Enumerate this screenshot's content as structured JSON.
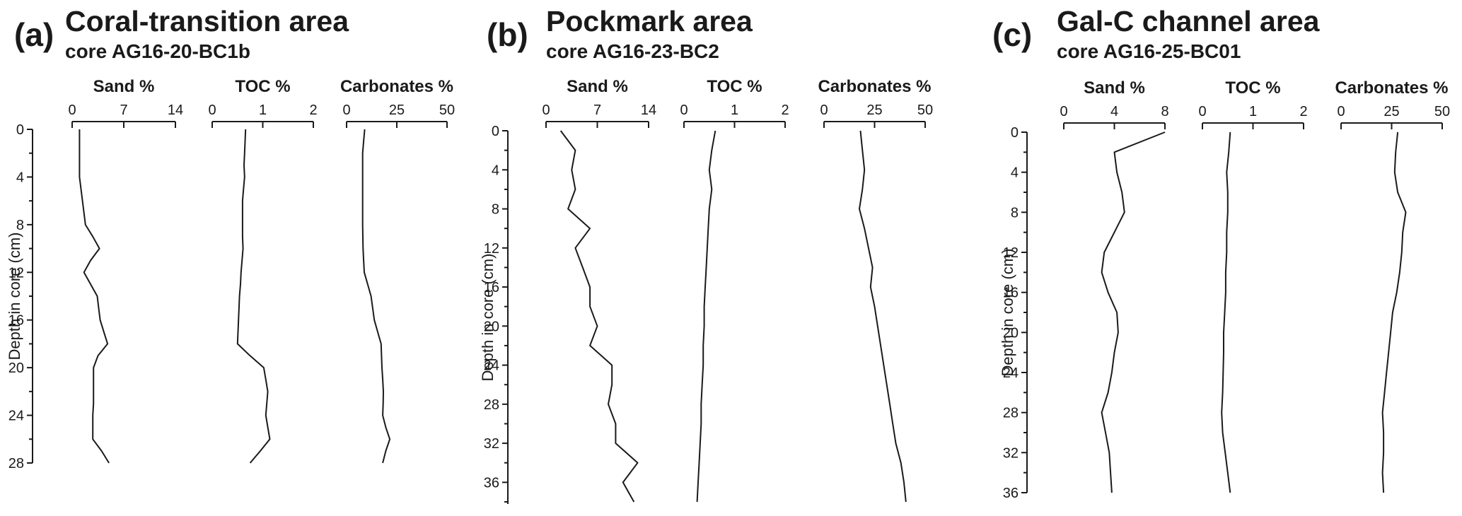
{
  "chart_data": [
    {
      "type": "line",
      "panel": "(a)",
      "title": "Coral-transition area",
      "subtitle": "core AG16-20-BC1b",
      "ylabel": "Depth in core (cm)",
      "ylim": [
        0,
        28
      ],
      "yticks": [
        0,
        4,
        8,
        12,
        16,
        20,
        24,
        28
      ],
      "depth": [
        0,
        1,
        2,
        3,
        4,
        5,
        6,
        7,
        8,
        9,
        10,
        11,
        12,
        13,
        14,
        15,
        16,
        17,
        18,
        19,
        20,
        21,
        22,
        23,
        24,
        25,
        26,
        27,
        28
      ],
      "series": [
        {
          "name": "Sand %",
          "xlim": [
            0,
            14
          ],
          "xticks": [
            0,
            7,
            14
          ],
          "values": [
            1.0,
            1.0,
            1.0,
            1.0,
            1.0,
            1.2,
            1.4,
            1.6,
            1.8,
            2.8,
            3.7,
            2.5,
            1.6,
            2.5,
            3.4,
            3.6,
            3.8,
            4.3,
            4.8,
            3.5,
            2.9,
            2.9,
            2.9,
            2.9,
            2.8,
            2.8,
            2.8,
            4.0,
            5.0
          ]
        },
        {
          "name": "TOC %",
          "xlim": [
            0,
            2
          ],
          "xticks": [
            0,
            1,
            2
          ],
          "values": [
            0.66,
            0.65,
            0.64,
            0.63,
            0.64,
            0.62,
            0.6,
            0.6,
            0.6,
            0.6,
            0.61,
            0.59,
            0.57,
            0.56,
            0.54,
            0.53,
            0.52,
            0.51,
            0.5,
            0.75,
            1.02,
            1.06,
            1.1,
            1.08,
            1.06,
            1.1,
            1.14,
            0.95,
            0.75
          ]
        },
        {
          "name": "Carbonates %",
          "xlim": [
            0,
            50
          ],
          "xticks": [
            0,
            25,
            50
          ],
          "values": [
            9.0,
            8.5,
            8.0,
            8.0,
            8.0,
            8.0,
            8.0,
            8.0,
            8.0,
            8.1,
            8.2,
            8.5,
            8.8,
            10.5,
            12.2,
            13.0,
            13.8,
            15.5,
            17.2,
            17.4,
            17.6,
            18.0,
            18.3,
            18.2,
            18.0,
            19.5,
            21.5,
            19.5,
            18.0
          ]
        }
      ]
    },
    {
      "type": "line",
      "panel": "(b)",
      "title": "Pockmark area",
      "subtitle": "core AG16-23-BC2",
      "ylabel": "Depth in core (cm)",
      "ylim": [
        0,
        38
      ],
      "yticks": [
        0,
        4,
        8,
        12,
        16,
        20,
        24,
        28,
        32,
        36
      ],
      "depth": [
        0,
        2,
        4,
        6,
        8,
        10,
        12,
        14,
        16,
        18,
        20,
        22,
        24,
        26,
        28,
        30,
        32,
        34,
        36,
        38
      ],
      "series": [
        {
          "name": "Sand %",
          "xlim": [
            0,
            14
          ],
          "xticks": [
            0,
            7,
            14
          ],
          "values": [
            2.0,
            4.0,
            3.5,
            4.0,
            3.0,
            6.0,
            4.0,
            5.0,
            6.0,
            6.0,
            7.0,
            6.0,
            9.0,
            9.0,
            8.5,
            9.5,
            9.5,
            12.5,
            10.5,
            12.0
          ]
        },
        {
          "name": "TOC %",
          "xlim": [
            0,
            2
          ],
          "xticks": [
            0,
            1,
            2
          ],
          "values": [
            0.62,
            0.55,
            0.5,
            0.55,
            0.5,
            0.48,
            0.46,
            0.44,
            0.42,
            0.4,
            0.4,
            0.38,
            0.38,
            0.36,
            0.34,
            0.34,
            0.32,
            0.3,
            0.28,
            0.26
          ]
        },
        {
          "name": "Carbonates %",
          "xlim": [
            0,
            50
          ],
          "xticks": [
            0,
            25,
            50
          ],
          "values": [
            18.0,
            19.0,
            20.0,
            19.0,
            17.5,
            20.0,
            22.0,
            24.0,
            23.0,
            25.0,
            26.5,
            28.0,
            29.5,
            31.0,
            32.5,
            34.0,
            35.5,
            38.0,
            39.5,
            40.5
          ]
        }
      ]
    },
    {
      "type": "line",
      "panel": "(c)",
      "title": "Gal-C channel area",
      "subtitle": "core AG16-25-BC01",
      "ylabel": "Depth in core (cm)",
      "ylim": [
        0,
        36
      ],
      "yticks": [
        0,
        4,
        8,
        12,
        16,
        20,
        24,
        28,
        32,
        36
      ],
      "depth": [
        0,
        2,
        4,
        6,
        8,
        10,
        12,
        14,
        16,
        18,
        20,
        22,
        24,
        26,
        28,
        30,
        32,
        34,
        36
      ],
      "series": [
        {
          "name": "Sand %",
          "xlim": [
            0,
            8
          ],
          "xticks": [
            0,
            4,
            8
          ],
          "values": [
            8.0,
            4.0,
            4.2,
            4.6,
            4.8,
            4.0,
            3.2,
            3.0,
            3.5,
            4.2,
            4.3,
            4.0,
            3.8,
            3.5,
            3.0,
            3.3,
            3.6,
            3.7,
            3.8
          ]
        },
        {
          "name": "TOC %",
          "xlim": [
            0,
            2
          ],
          "xticks": [
            0,
            1,
            2
          ],
          "values": [
            0.55,
            0.52,
            0.48,
            0.5,
            0.5,
            0.48,
            0.48,
            0.46,
            0.46,
            0.44,
            0.42,
            0.42,
            0.41,
            0.4,
            0.38,
            0.4,
            0.45,
            0.5,
            0.55
          ]
        },
        {
          "name": "Carbonates %",
          "xlim": [
            0,
            50
          ],
          "xticks": [
            0,
            25,
            50
          ],
          "values": [
            28.0,
            27.0,
            26.5,
            28.0,
            32.0,
            30.5,
            30.0,
            29.0,
            27.5,
            25.5,
            24.5,
            23.5,
            22.5,
            21.5,
            20.5,
            21.0,
            21.0,
            20.5,
            21.0
          ]
        }
      ]
    }
  ]
}
